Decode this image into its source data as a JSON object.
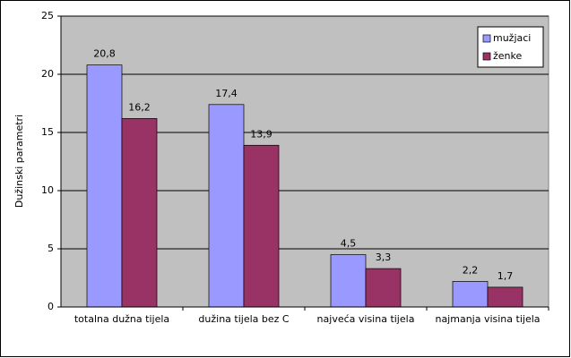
{
  "chart_data": {
    "type": "bar",
    "y_label": "Dužinski parametri",
    "categories": [
      "totalna dužna tijela",
      "dužina tijela bez C",
      "najveća visina tijela",
      "najmanja visina tijela"
    ],
    "series": [
      {
        "name": "mužjaci",
        "color": "#9999ff",
        "values": [
          20.8,
          17.4,
          4.5,
          2.2
        ],
        "value_labels": [
          "20,8",
          "17,4",
          "4,5",
          "2,2"
        ]
      },
      {
        "name": "ženke",
        "color": "#993366",
        "values": [
          16.2,
          13.9,
          3.3,
          1.7
        ],
        "value_labels": [
          "16,2",
          "13,9",
          "3,3",
          "1,7"
        ]
      }
    ],
    "ylim": [
      0,
      25
    ],
    "yticks": [
      0,
      5,
      10,
      15,
      20,
      25
    ],
    "grid": true,
    "legend": "top-right"
  }
}
